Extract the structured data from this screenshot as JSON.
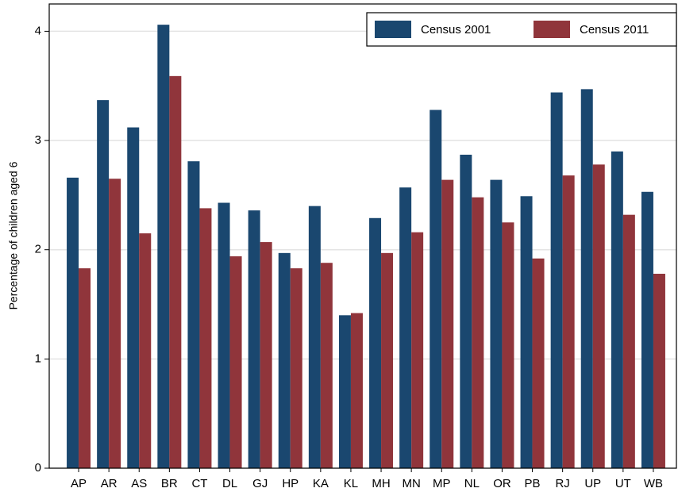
{
  "chart_data": {
    "type": "bar",
    "y_label": "Percentage of children aged 6",
    "categories": [
      "AP",
      "AR",
      "AS",
      "BR",
      "CT",
      "DL",
      "GJ",
      "HP",
      "KA",
      "KL",
      "MH",
      "MN",
      "MP",
      "NL",
      "OR",
      "PB",
      "RJ",
      "UP",
      "UT",
      "WB"
    ],
    "series": [
      {
        "name": "Census 2001",
        "color": "#1a476f",
        "values": [
          2.66,
          3.37,
          3.12,
          4.06,
          2.81,
          2.43,
          2.36,
          1.97,
          2.4,
          1.4,
          2.29,
          2.57,
          3.28,
          2.87,
          2.64,
          2.49,
          3.44,
          3.47,
          2.9,
          2.53
        ]
      },
      {
        "name": "Census 2011",
        "color": "#90353b",
        "values": [
          1.83,
          2.65,
          2.15,
          3.59,
          2.38,
          1.94,
          2.07,
          1.83,
          1.88,
          1.42,
          1.97,
          2.16,
          2.64,
          2.48,
          2.25,
          1.92,
          2.68,
          2.78,
          2.32,
          1.78
        ]
      }
    ],
    "ylim": [
      0,
      4.25
    ],
    "yticks": [
      0,
      1,
      2,
      3,
      4
    ],
    "grid": true,
    "legend": "top-right"
  }
}
